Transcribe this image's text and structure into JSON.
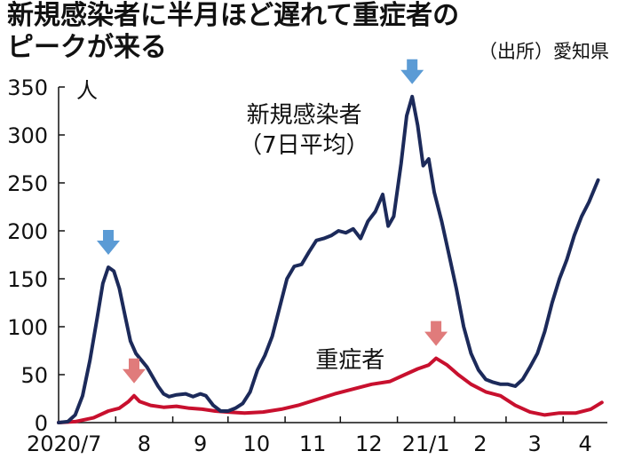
{
  "title_lines": [
    "新規感染者に半月ほど遅れて重症者の",
    "ピークが来る"
  ],
  "source": "（出所）愛知県",
  "chart_data": {
    "type": "line",
    "y_unit": "人",
    "ylim": [
      0,
      350
    ],
    "yticks": [
      0,
      50,
      100,
      150,
      200,
      250,
      300,
      350
    ],
    "x_range": [
      "2020-07-01",
      "2021-04-25"
    ],
    "xticks": [
      {
        "label": "2020/7",
        "date": "2020-07-01"
      },
      {
        "label": "8",
        "date": "2020-08-01"
      },
      {
        "label": "9",
        "date": "2020-09-01"
      },
      {
        "label": "10",
        "date": "2020-10-01"
      },
      {
        "label": "11",
        "date": "2020-11-01"
      },
      {
        "label": "12",
        "date": "2020-12-01"
      },
      {
        "label": "21/1",
        "date": "2021-01-01"
      },
      {
        "label": "2",
        "date": "2021-02-01"
      },
      {
        "label": "3",
        "date": "2021-03-01"
      },
      {
        "label": "4",
        "date": "2021-04-01"
      }
    ],
    "grid": false,
    "series": [
      {
        "name": "新規感染者（7日平均）",
        "label_lines": [
          "新規感染者",
          "（7日平均）"
        ],
        "color": "#1c2a5a",
        "points": [
          [
            "2020-07-01",
            0
          ],
          [
            "2020-07-06",
            1
          ],
          [
            "2020-07-10",
            8
          ],
          [
            "2020-07-14",
            28
          ],
          [
            "2020-07-18",
            65
          ],
          [
            "2020-07-22",
            110
          ],
          [
            "2020-07-25",
            145
          ],
          [
            "2020-07-28",
            162
          ],
          [
            "2020-07-31",
            158
          ],
          [
            "2020-08-03",
            140
          ],
          [
            "2020-08-06",
            112
          ],
          [
            "2020-08-09",
            85
          ],
          [
            "2020-08-12",
            72
          ],
          [
            "2020-08-15",
            65
          ],
          [
            "2020-08-18",
            58
          ],
          [
            "2020-08-21",
            48
          ],
          [
            "2020-08-24",
            38
          ],
          [
            "2020-08-27",
            30
          ],
          [
            "2020-08-30",
            27
          ],
          [
            "2020-09-03",
            29
          ],
          [
            "2020-09-08",
            30
          ],
          [
            "2020-09-12",
            27
          ],
          [
            "2020-09-16",
            30
          ],
          [
            "2020-09-19",
            28
          ],
          [
            "2020-09-23",
            18
          ],
          [
            "2020-09-27",
            12
          ],
          [
            "2020-10-01",
            12
          ],
          [
            "2020-10-05",
            15
          ],
          [
            "2020-10-09",
            20
          ],
          [
            "2020-10-13",
            32
          ],
          [
            "2020-10-17",
            55
          ],
          [
            "2020-10-21",
            70
          ],
          [
            "2020-10-25",
            90
          ],
          [
            "2020-10-29",
            120
          ],
          [
            "2020-11-02",
            150
          ],
          [
            "2020-11-06",
            163
          ],
          [
            "2020-11-10",
            165
          ],
          [
            "2020-11-14",
            178
          ],
          [
            "2020-11-18",
            190
          ],
          [
            "2020-11-22",
            192
          ],
          [
            "2020-11-26",
            195
          ],
          [
            "2020-11-30",
            200
          ],
          [
            "2020-12-04",
            198
          ],
          [
            "2020-12-08",
            202
          ],
          [
            "2020-12-12",
            192
          ],
          [
            "2020-12-16",
            210
          ],
          [
            "2020-12-20",
            220
          ],
          [
            "2020-12-24",
            238
          ],
          [
            "2020-12-27",
            205
          ],
          [
            "2020-12-30",
            215
          ],
          [
            "2021-01-03",
            270
          ],
          [
            "2021-01-06",
            320
          ],
          [
            "2021-01-09",
            340
          ],
          [
            "2021-01-12",
            310
          ],
          [
            "2021-01-15",
            268
          ],
          [
            "2021-01-18",
            275
          ],
          [
            "2021-01-21",
            240
          ],
          [
            "2021-01-25",
            210
          ],
          [
            "2021-01-29",
            175
          ],
          [
            "2021-02-02",
            140
          ],
          [
            "2021-02-06",
            100
          ],
          [
            "2021-02-10",
            72
          ],
          [
            "2021-02-14",
            55
          ],
          [
            "2021-02-18",
            45
          ],
          [
            "2021-02-22",
            42
          ],
          [
            "2021-02-26",
            40
          ],
          [
            "2021-03-02",
            40
          ],
          [
            "2021-03-06",
            38
          ],
          [
            "2021-03-10",
            45
          ],
          [
            "2021-03-14",
            58
          ],
          [
            "2021-03-18",
            72
          ],
          [
            "2021-03-22",
            95
          ],
          [
            "2021-03-26",
            125
          ],
          [
            "2021-03-30",
            150
          ],
          [
            "2021-04-03",
            170
          ],
          [
            "2021-04-07",
            195
          ],
          [
            "2021-04-11",
            215
          ],
          [
            "2021-04-15",
            230
          ],
          [
            "2021-04-20",
            253
          ]
        ]
      },
      {
        "name": "重症者",
        "label_lines": [
          "重症者"
        ],
        "color": "#c8102e",
        "points": [
          [
            "2020-07-01",
            0
          ],
          [
            "2020-07-10",
            1
          ],
          [
            "2020-07-20",
            5
          ],
          [
            "2020-07-28",
            12
          ],
          [
            "2020-08-03",
            15
          ],
          [
            "2020-08-08",
            22
          ],
          [
            "2020-08-11",
            28
          ],
          [
            "2020-08-14",
            22
          ],
          [
            "2020-08-20",
            18
          ],
          [
            "2020-08-27",
            16
          ],
          [
            "2020-09-03",
            17
          ],
          [
            "2020-09-10",
            15
          ],
          [
            "2020-09-17",
            14
          ],
          [
            "2020-09-24",
            12
          ],
          [
            "2020-10-01",
            11
          ],
          [
            "2020-10-10",
            10
          ],
          [
            "2020-10-20",
            11
          ],
          [
            "2020-10-30",
            14
          ],
          [
            "2020-11-08",
            18
          ],
          [
            "2020-11-18",
            24
          ],
          [
            "2020-11-28",
            30
          ],
          [
            "2020-12-08",
            35
          ],
          [
            "2020-12-18",
            40
          ],
          [
            "2020-12-28",
            43
          ],
          [
            "2021-01-05",
            50
          ],
          [
            "2021-01-12",
            56
          ],
          [
            "2021-01-18",
            60
          ],
          [
            "2021-01-22",
            67
          ],
          [
            "2021-01-28",
            60
          ],
          [
            "2021-02-03",
            50
          ],
          [
            "2021-02-10",
            40
          ],
          [
            "2021-02-18",
            32
          ],
          [
            "2021-02-26",
            28
          ],
          [
            "2021-03-06",
            18
          ],
          [
            "2021-03-14",
            11
          ],
          [
            "2021-03-22",
            8
          ],
          [
            "2021-03-30",
            10
          ],
          [
            "2021-04-08",
            10
          ],
          [
            "2021-04-16",
            14
          ],
          [
            "2021-04-22",
            21
          ]
        ]
      }
    ],
    "peak_markers": [
      {
        "series": "新規感染者（7日平均）",
        "date": "2020-07-28",
        "value": 162,
        "color": "#5b9bd5"
      },
      {
        "series": "新規感染者（7日平均）",
        "date": "2021-01-09",
        "value": 340,
        "color": "#5b9bd5"
      },
      {
        "series": "重症者",
        "date": "2020-08-11",
        "value": 28,
        "color": "#e07b7b"
      },
      {
        "series": "重症者",
        "date": "2021-01-22",
        "value": 67,
        "color": "#e07b7b"
      }
    ]
  }
}
